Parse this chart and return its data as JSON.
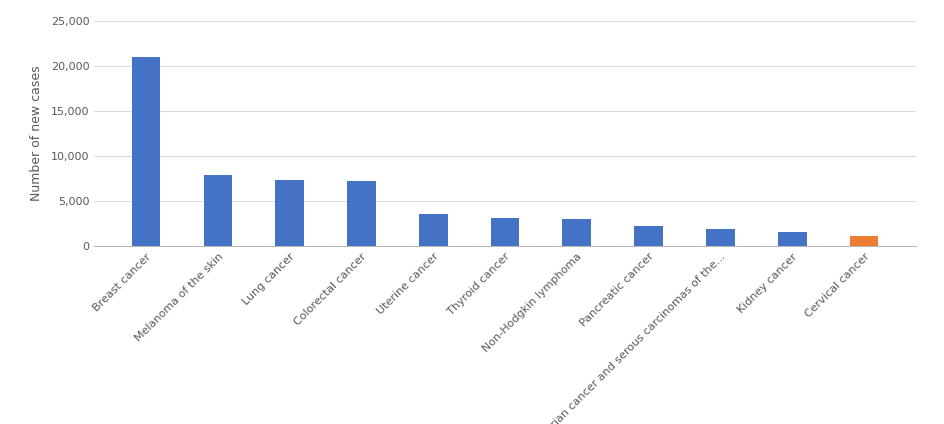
{
  "categories": [
    "Breast cancer",
    "Melanoma of the skin",
    "Lung cancer",
    "Colorectal cancer",
    "Uterine cancer",
    "Thyroid cancer",
    "Non-Hodgkin lymphoma",
    "Pancreatic cancer",
    "Ovarian cancer and serous carcinomas of the...",
    "Kidney cancer",
    "Cervical cancer"
  ],
  "values": [
    21000,
    7900,
    7300,
    7200,
    3500,
    3100,
    3050,
    2250,
    1850,
    1600,
    1050
  ],
  "bar_colors": [
    "#4472C4",
    "#4472C4",
    "#4472C4",
    "#4472C4",
    "#4472C4",
    "#4472C4",
    "#4472C4",
    "#4472C4",
    "#4472C4",
    "#4472C4",
    "#ED7D31"
  ],
  "ylabel": "Number of new cases",
  "ylim": [
    0,
    25000
  ],
  "yticks": [
    0,
    5000,
    10000,
    15000,
    20000,
    25000
  ],
  "background_color": "#FFFFFF",
  "grid_color": "#D9D9D9",
  "bar_width": 0.4,
  "tick_fontsize": 8,
  "label_fontsize": 9
}
